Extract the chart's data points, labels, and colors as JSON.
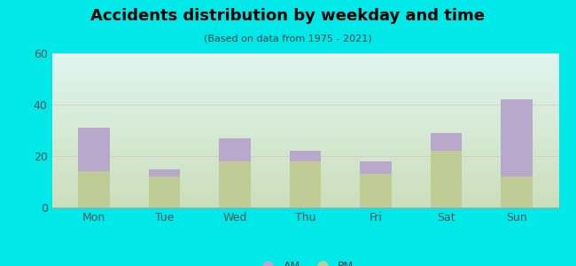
{
  "categories": [
    "Mon",
    "Tue",
    "Wed",
    "Thu",
    "Fri",
    "Sat",
    "Sun"
  ],
  "pm_values": [
    14,
    12,
    18,
    18,
    13,
    22,
    12
  ],
  "am_values": [
    17,
    3,
    9,
    4,
    5,
    7,
    30
  ],
  "am_color": "#b8a8cc",
  "pm_color": "#bfcc96",
  "title": "Accidents distribution by weekday and time",
  "subtitle": "(Based on data from 1975 - 2021)",
  "ylim": [
    0,
    60
  ],
  "yticks": [
    0,
    20,
    40,
    60
  ],
  "background_color": "#00e8e8",
  "legend_labels": [
    "AM",
    "PM"
  ],
  "bar_width": 0.45,
  "tick_color": "#555555",
  "grid_color": "#dddddd"
}
